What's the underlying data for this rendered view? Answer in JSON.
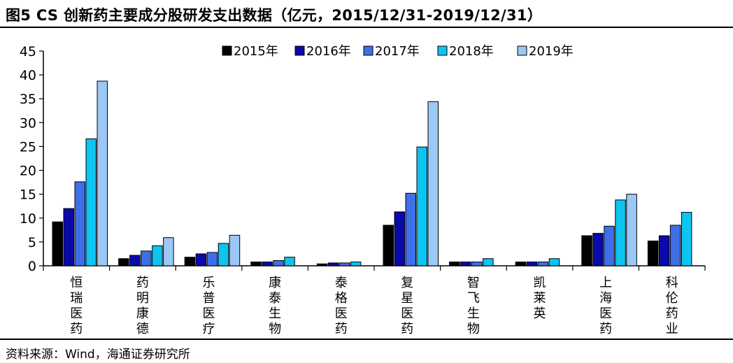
{
  "figure": {
    "title": "图5  CS 创新药主要成分股研发支出数据（亿元，2015/12/31-2019/12/31）",
    "source": "资料来源：Wind，海通证券研究所"
  },
  "chart_data": {
    "type": "bar",
    "title": "",
    "xlabel": "",
    "ylabel": "",
    "ylim": [
      0,
      45
    ],
    "yticks": [
      0,
      5,
      10,
      15,
      20,
      25,
      30,
      35,
      40,
      45
    ],
    "grid": false,
    "legend_position": "top",
    "categories": [
      "恒瑞医药",
      "药明康德",
      "乐普医疗",
      "康泰生物",
      "泰格医药",
      "复星医药",
      "智飞生物",
      "凯莱英",
      "上海医药",
      "科伦药业"
    ],
    "series": [
      {
        "name": "2015年",
        "color": "#000000",
        "values": [
          9.2,
          1.5,
          1.8,
          0.8,
          0.4,
          8.5,
          0.8,
          0.8,
          6.3,
          5.2
        ]
      },
      {
        "name": "2016年",
        "color": "#0a0aa8",
        "values": [
          12.0,
          2.2,
          2.5,
          0.8,
          0.6,
          11.3,
          0.8,
          0.8,
          6.8,
          6.3
        ]
      },
      {
        "name": "2017年",
        "color": "#3f6fe6",
        "values": [
          17.6,
          3.1,
          2.8,
          1.1,
          0.6,
          15.2,
          0.8,
          0.8,
          8.3,
          8.5
        ]
      },
      {
        "name": "2018年",
        "color": "#0ec4f0",
        "values": [
          26.6,
          4.2,
          4.7,
          1.8,
          0.8,
          24.9,
          1.5,
          1.5,
          13.8,
          11.2
        ]
      },
      {
        "name": "2019年",
        "color": "#9cc8f5",
        "values": [
          38.7,
          5.9,
          6.4,
          null,
          null,
          34.4,
          null,
          null,
          15.0,
          null
        ]
      }
    ]
  }
}
